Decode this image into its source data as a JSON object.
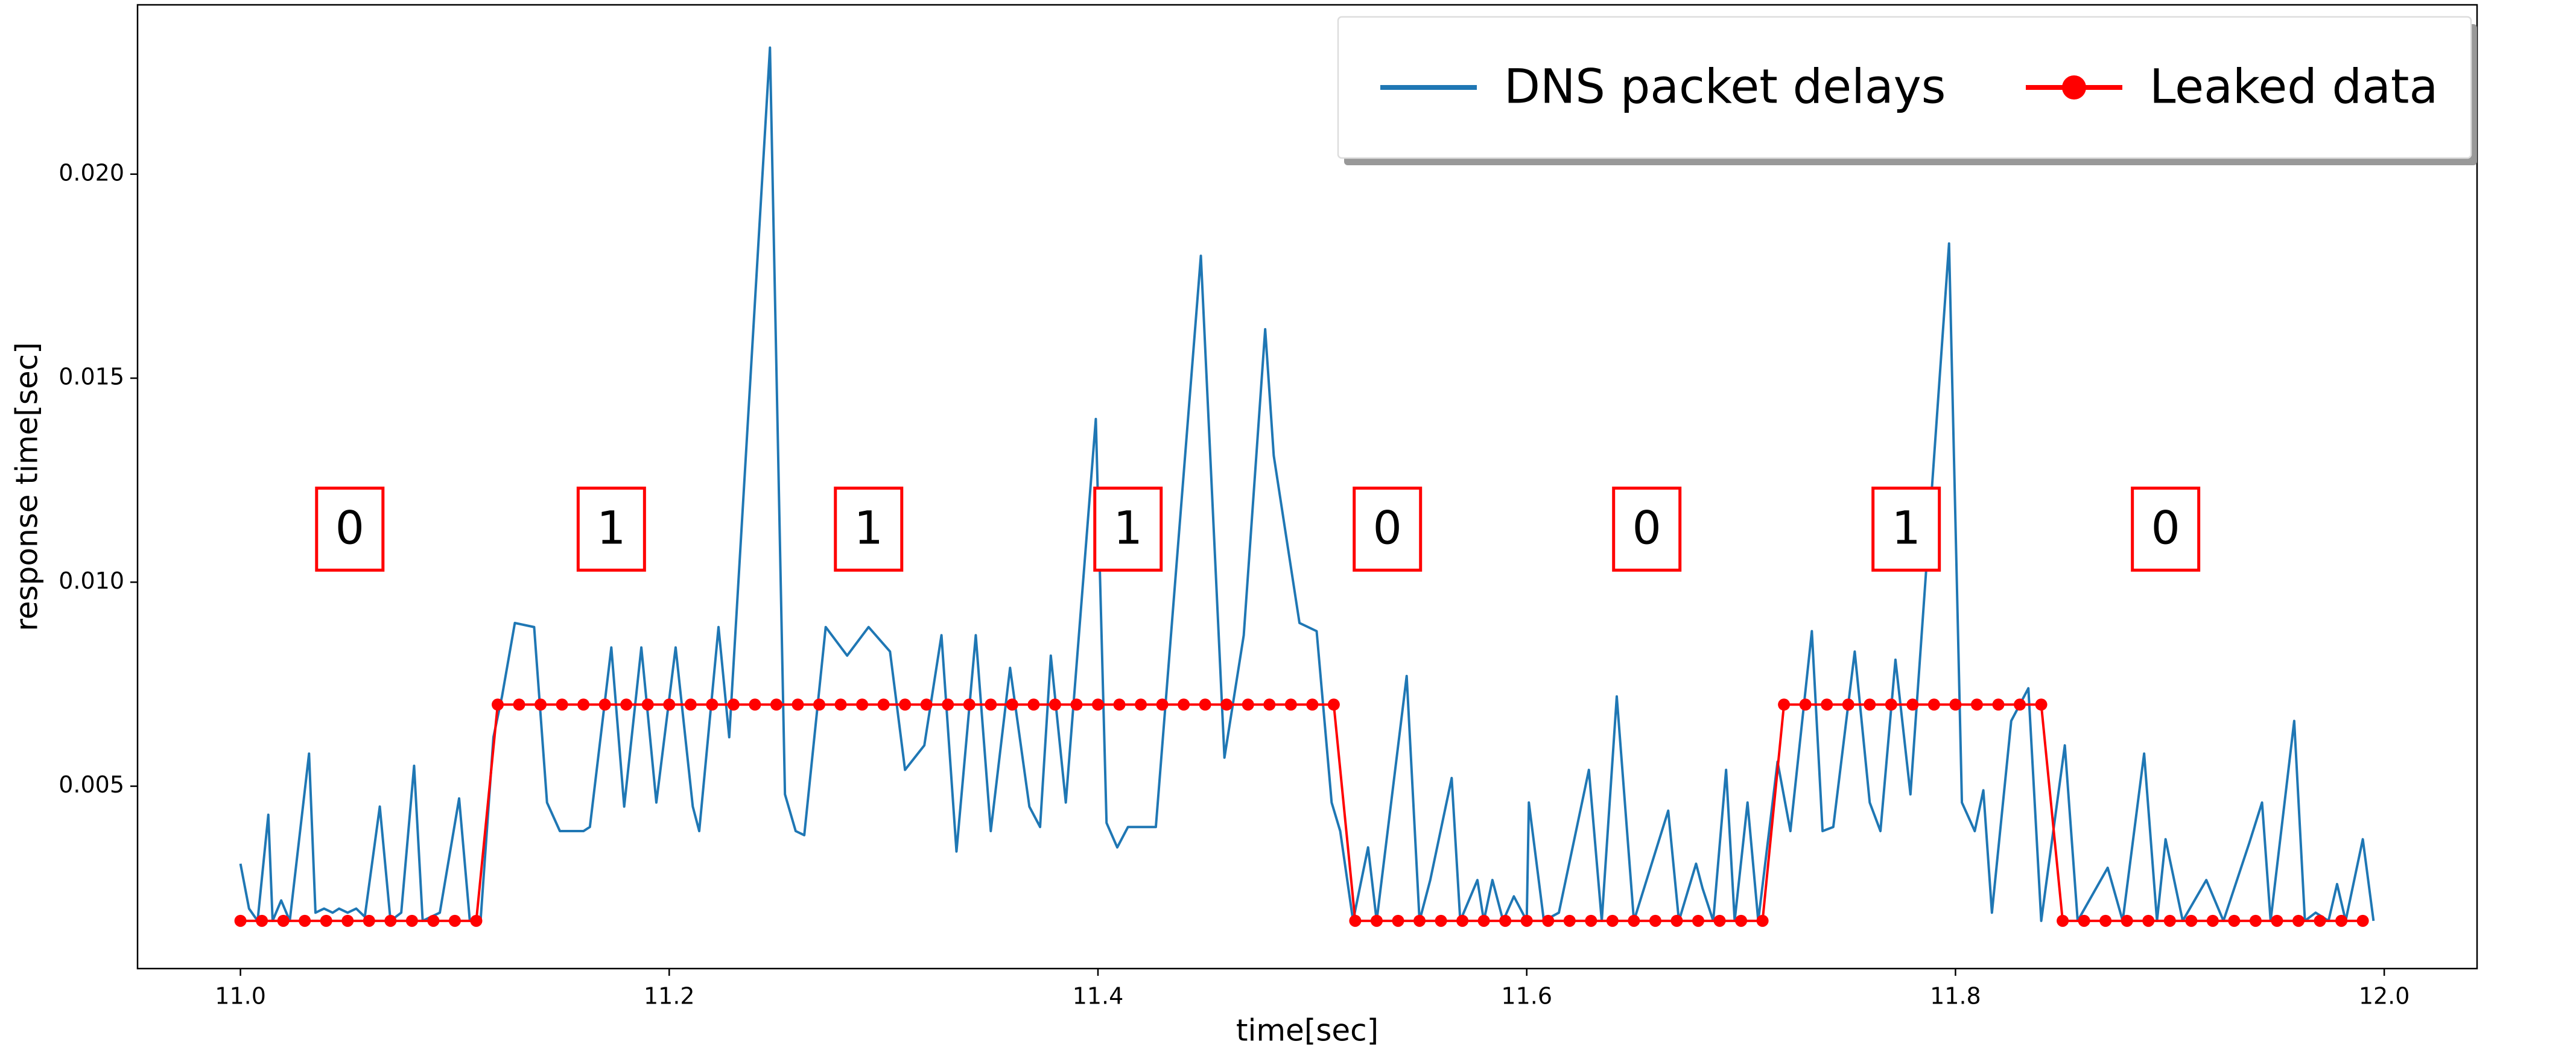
{
  "chart_data": {
    "type": "line",
    "xlabel": "time[sec]",
    "ylabel": "response time[sec]",
    "xlim": [
      10.952,
      12.0433
    ],
    "ylim": [
      0.00053,
      0.02415
    ],
    "xticks": [
      {
        "value": 11,
        "label": "11.0"
      },
      11.2,
      11.4,
      11.6,
      11.8,
      {
        "value": 12,
        "label": "12.0"
      }
    ],
    "yticks": [
      0.005,
      {
        "value": 0.01,
        "label": "0.010"
      },
      0.015,
      {
        "value": 0.02,
        "label": "0.020"
      }
    ],
    "legend": "upper right",
    "series": [
      {
        "name": "DNS packet delays",
        "color": "#1f77b4",
        "marker": false,
        "x": [
          11.0,
          11.004,
          11.008,
          11.013,
          11.015,
          11.019,
          11.023,
          11.032,
          11.035,
          11.039,
          11.043,
          11.046,
          11.05,
          11.054,
          11.058,
          11.065,
          11.07,
          11.075,
          11.081,
          11.085,
          11.093,
          11.102,
          11.107,
          11.112,
          11.118,
          11.122,
          11.128,
          11.137,
          11.143,
          11.149,
          11.16,
          11.163,
          11.173,
          11.179,
          11.187,
          11.194,
          11.203,
          11.211,
          11.214,
          11.223,
          11.228,
          11.247,
          11.254,
          11.259,
          11.263,
          11.273,
          11.283,
          11.293,
          11.303,
          11.31,
          11.319,
          11.327,
          11.334,
          11.343,
          11.35,
          11.359,
          11.368,
          11.373,
          11.378,
          11.385,
          11.399,
          11.404,
          11.409,
          11.414,
          11.42,
          11.427,
          11.448,
          11.459,
          11.468,
          11.478,
          11.482,
          11.494,
          11.502,
          11.509,
          11.513,
          11.519,
          11.526,
          11.53,
          11.544,
          11.55,
          11.555,
          11.565,
          11.569,
          11.577,
          11.58,
          11.584,
          11.589,
          11.594,
          11.6,
          11.601,
          11.608,
          11.615,
          11.629,
          11.635,
          11.642,
          11.65,
          11.666,
          11.671,
          11.679,
          11.682,
          11.687,
          11.693,
          11.697,
          11.703,
          11.708,
          11.717,
          11.723,
          11.733,
          11.738,
          11.743,
          11.753,
          11.76,
          11.765,
          11.772,
          11.779,
          11.797,
          11.803,
          11.809,
          11.813,
          11.817,
          11.826,
          11.834,
          11.84,
          11.851,
          11.857,
          11.871,
          11.878,
          11.888,
          11.894,
          11.898,
          11.906,
          11.917,
          11.925,
          11.937,
          11.943,
          11.947,
          11.958,
          11.963,
          11.968,
          11.974,
          11.978,
          11.982,
          11.99,
          11.995
        ],
        "values": [
          0.0031,
          0.002,
          0.0017,
          0.0043,
          0.0017,
          0.0022,
          0.0017,
          0.0058,
          0.0019,
          0.002,
          0.0019,
          0.002,
          0.0019,
          0.002,
          0.0018,
          0.0045,
          0.0017,
          0.0019,
          0.0055,
          0.0017,
          0.0019,
          0.0047,
          0.0017,
          0.0017,
          0.0062,
          0.0072,
          0.009,
          0.0089,
          0.0046,
          0.0039,
          0.0039,
          0.004,
          0.0084,
          0.0045,
          0.0084,
          0.0046,
          0.0084,
          0.0045,
          0.0039,
          0.0089,
          0.0062,
          0.0231,
          0.0048,
          0.0039,
          0.0038,
          0.0089,
          0.0082,
          0.0089,
          0.0083,
          0.0054,
          0.006,
          0.0087,
          0.0034,
          0.0087,
          0.0039,
          0.0079,
          0.0045,
          0.004,
          0.0082,
          0.0046,
          0.014,
          0.0041,
          0.0035,
          0.004,
          0.004,
          0.004,
          0.018,
          0.0057,
          0.0087,
          0.0162,
          0.0131,
          0.009,
          0.0088,
          0.0046,
          0.0039,
          0.0017,
          0.0035,
          0.0017,
          0.0077,
          0.0017,
          0.0027,
          0.0052,
          0.0017,
          0.0027,
          0.0017,
          0.0027,
          0.0017,
          0.0023,
          0.0017,
          0.0046,
          0.0017,
          0.0019,
          0.0054,
          0.0017,
          0.0072,
          0.0017,
          0.0044,
          0.0017,
          0.0031,
          0.0025,
          0.0017,
          0.0054,
          0.0017,
          0.0046,
          0.0017,
          0.0056,
          0.0039,
          0.0088,
          0.0039,
          0.004,
          0.0083,
          0.0046,
          0.0039,
          0.0081,
          0.0048,
          0.0183,
          0.0046,
          0.0039,
          0.0049,
          0.0019,
          0.0066,
          0.0074,
          0.0017,
          0.006,
          0.0017,
          0.003,
          0.0017,
          0.0058,
          0.0017,
          0.0037,
          0.0017,
          0.0027,
          0.0017,
          0.0036,
          0.0046,
          0.0017,
          0.0066,
          0.0017,
          0.0019,
          0.0017,
          0.0026,
          0.0017,
          0.0037,
          0.0017
        ]
      },
      {
        "name": "Leaked data",
        "color": "red",
        "marker": true,
        "x": [
          11.0,
          11.01,
          11.02,
          11.03,
          11.04,
          11.05,
          11.06,
          11.07,
          11.08,
          11.09,
          11.1,
          11.11,
          11.12,
          11.13,
          11.14,
          11.15,
          11.16,
          11.17,
          11.18,
          11.19,
          11.2,
          11.21,
          11.22,
          11.23,
          11.24,
          11.25,
          11.26,
          11.27,
          11.28,
          11.29,
          11.3,
          11.31,
          11.32,
          11.33,
          11.34,
          11.35,
          11.36,
          11.37,
          11.38,
          11.39,
          11.4,
          11.41,
          11.42,
          11.43,
          11.44,
          11.45,
          11.46,
          11.47,
          11.48,
          11.49,
          11.5,
          11.51,
          11.52,
          11.53,
          11.54,
          11.55,
          11.56,
          11.57,
          11.58,
          11.59,
          11.6,
          11.61,
          11.62,
          11.63,
          11.64,
          11.65,
          11.66,
          11.67,
          11.68,
          11.69,
          11.7,
          11.71,
          11.72,
          11.73,
          11.74,
          11.75,
          11.76,
          11.77,
          11.78,
          11.79,
          11.8,
          11.81,
          11.82,
          11.83,
          11.84,
          11.85,
          11.86,
          11.87,
          11.88,
          11.89,
          11.9,
          11.91,
          11.92,
          11.93,
          11.94,
          11.95,
          11.96,
          11.97,
          11.98,
          11.99
        ],
        "values": [
          0.0017,
          0.0017,
          0.0017,
          0.0017,
          0.0017,
          0.0017,
          0.0017,
          0.0017,
          0.0017,
          0.0017,
          0.0017,
          0.0017,
          0.007,
          0.007,
          0.007,
          0.007,
          0.007,
          0.007,
          0.007,
          0.007,
          0.007,
          0.007,
          0.007,
          0.007,
          0.007,
          0.007,
          0.007,
          0.007,
          0.007,
          0.007,
          0.007,
          0.007,
          0.007,
          0.007,
          0.007,
          0.007,
          0.007,
          0.007,
          0.007,
          0.007,
          0.007,
          0.007,
          0.007,
          0.007,
          0.007,
          0.007,
          0.007,
          0.007,
          0.007,
          0.007,
          0.007,
          0.007,
          0.0017,
          0.0017,
          0.0017,
          0.0017,
          0.0017,
          0.0017,
          0.0017,
          0.0017,
          0.0017,
          0.0017,
          0.0017,
          0.0017,
          0.0017,
          0.0017,
          0.0017,
          0.0017,
          0.0017,
          0.0017,
          0.0017,
          0.0017,
          0.007,
          0.007,
          0.007,
          0.007,
          0.007,
          0.007,
          0.007,
          0.007,
          0.007,
          0.007,
          0.007,
          0.007,
          0.007,
          0.0017,
          0.0017,
          0.0017,
          0.0017,
          0.0017,
          0.0017,
          0.0017,
          0.0017,
          0.0017,
          0.0017,
          0.0017,
          0.0017,
          0.0017,
          0.0017,
          0.0017
        ]
      }
    ],
    "annotations": [
      {
        "text": "0",
        "x": 11.051,
        "y": 0.0113
      },
      {
        "text": "1",
        "x": 11.173,
        "y": 0.0113
      },
      {
        "text": "1",
        "x": 11.293,
        "y": 0.0113
      },
      {
        "text": "1",
        "x": 11.414,
        "y": 0.0113
      },
      {
        "text": "0",
        "x": 11.535,
        "y": 0.0113
      },
      {
        "text": "0",
        "x": 11.656,
        "y": 0.0113
      },
      {
        "text": "1",
        "x": 11.777,
        "y": 0.0113
      },
      {
        "text": "0",
        "x": 11.898,
        "y": 0.0113
      }
    ]
  }
}
